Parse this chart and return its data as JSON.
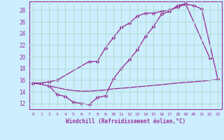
{
  "xlabel": "Windchill (Refroidissement éolien,°C)",
  "bg_color": "#cceeff",
  "grid_color": "#b0ddd0",
  "line_color": "#993399",
  "xlim": [
    -0.5,
    23.5
  ],
  "ylim": [
    11.0,
    29.5
  ],
  "yticks": [
    12,
    14,
    16,
    18,
    20,
    22,
    24,
    26,
    28
  ],
  "xticks": [
    0,
    1,
    2,
    3,
    4,
    5,
    6,
    7,
    8,
    9,
    10,
    11,
    12,
    13,
    14,
    15,
    16,
    17,
    18,
    19,
    20,
    21,
    22,
    23
  ],
  "curve1_x": [
    0,
    1,
    2,
    3,
    7,
    8,
    9,
    10,
    11,
    12,
    13,
    14,
    15,
    16,
    17,
    18,
    19,
    20,
    21,
    23
  ],
  "curve1_y": [
    15.5,
    15.5,
    15.7,
    16.0,
    19.2,
    19.2,
    21.5,
    23.3,
    25.0,
    25.8,
    27.0,
    27.5,
    27.5,
    27.8,
    28.0,
    28.5,
    29.0,
    28.8,
    28.2,
    16.2
  ],
  "curve2_x": [
    0,
    2,
    3,
    4,
    5,
    6,
    7,
    8,
    9,
    10,
    11,
    12,
    13,
    14,
    15,
    16,
    17,
    18,
    19,
    22
  ],
  "curve2_y": [
    15.5,
    15.0,
    13.5,
    13.2,
    12.2,
    12.0,
    11.8,
    13.0,
    13.3,
    16.2,
    18.0,
    19.5,
    21.2,
    23.5,
    25.2,
    27.3,
    27.8,
    28.8,
    29.1,
    19.8
  ],
  "curve3_x": [
    2,
    3,
    4,
    5,
    6,
    7,
    8,
    9,
    10,
    11,
    12,
    13,
    14,
    15,
    16,
    17,
    18,
    19,
    20,
    21,
    22,
    23
  ],
  "curve3_y": [
    15.0,
    14.7,
    14.4,
    14.2,
    14.1,
    14.1,
    14.2,
    14.3,
    14.5,
    14.6,
    14.7,
    14.85,
    14.95,
    15.1,
    15.2,
    15.35,
    15.5,
    15.6,
    15.7,
    15.8,
    15.95,
    16.1
  ],
  "marker": "D",
  "markersize": 2.5,
  "linewidth": 1.0
}
